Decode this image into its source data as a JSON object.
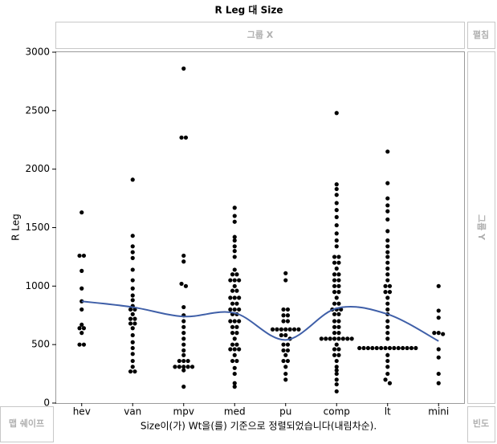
{
  "chart_data": {
    "type": "dotplot",
    "title": "R Leg 대 Size",
    "y_label": "R Leg",
    "x_label": "Size이(가) Wt을(를) 기준으로 정렬되었습니다(내림차순).",
    "categories": [
      "hev",
      "van",
      "mpv",
      "med",
      "pu",
      "comp",
      "lt",
      "mini"
    ],
    "values": [
      [
        1630,
        1260,
        1260,
        1130,
        980,
        870,
        800,
        670,
        640,
        640,
        600,
        500,
        500
      ],
      [
        1910,
        1430,
        1340,
        1290,
        1240,
        1140,
        1050,
        980,
        920,
        880,
        830,
        800,
        800,
        760,
        720,
        720,
        680,
        680,
        640,
        580,
        520,
        470,
        420,
        360,
        310,
        270,
        270
      ],
      [
        2860,
        2270,
        2270,
        1260,
        1210,
        1020,
        1000,
        820,
        750,
        700,
        650,
        600,
        550,
        500,
        450,
        410,
        360,
        360,
        360,
        310,
        310,
        310,
        310,
        310,
        280,
        140
      ],
      [
        1670,
        1600,
        1550,
        1420,
        1390,
        1340,
        1300,
        1250,
        1140,
        1100,
        1100,
        1050,
        1050,
        1050,
        1000,
        960,
        960,
        900,
        900,
        900,
        850,
        850,
        800,
        800,
        800,
        760,
        760,
        700,
        700,
        700,
        650,
        650,
        600,
        600,
        550,
        500,
        500,
        460,
        460,
        460,
        410,
        360,
        360,
        300,
        250,
        170,
        140
      ],
      [
        1110,
        1050,
        800,
        800,
        750,
        750,
        700,
        700,
        630,
        630,
        630,
        630,
        630,
        630,
        630,
        580,
        580,
        550,
        500,
        500,
        450,
        450,
        410,
        360,
        360,
        310,
        250,
        200
      ],
      [
        2480,
        1870,
        1830,
        1780,
        1710,
        1650,
        1590,
        1520,
        1450,
        1390,
        1340,
        1250,
        1250,
        1200,
        1200,
        1150,
        1100,
        1100,
        1050,
        1050,
        1000,
        1000,
        950,
        950,
        900,
        850,
        850,
        800,
        800,
        800,
        760,
        760,
        700,
        700,
        650,
        650,
        600,
        600,
        550,
        550,
        550,
        550,
        550,
        550,
        550,
        550,
        500,
        460,
        460,
        410,
        410,
        360,
        310,
        280,
        250,
        200,
        160,
        100
      ],
      [
        2150,
        1880,
        1750,
        1690,
        1640,
        1570,
        1470,
        1390,
        1340,
        1290,
        1250,
        1200,
        1150,
        1100,
        1050,
        1000,
        1000,
        950,
        950,
        900,
        850,
        800,
        760,
        700,
        650,
        600,
        550,
        470,
        470,
        470,
        470,
        470,
        470,
        470,
        470,
        470,
        470,
        470,
        470,
        470,
        470,
        410,
        360,
        310,
        250,
        200,
        170
      ],
      [
        1000,
        790,
        730,
        600,
        600,
        590,
        460,
        390,
        250,
        170
      ]
    ],
    "smooth_values": [
      870,
      820,
      740,
      770,
      540,
      810,
      760,
      530
    ],
    "point_color": "#000000",
    "smooth_color": "#3f5fa8",
    "ylim": [
      0,
      3000
    ],
    "yticks": [
      0,
      500,
      1000,
      1500,
      2000,
      2500,
      3000
    ]
  },
  "ui": {
    "group_x": "그룹 X",
    "wrap": "펼침",
    "group_y": "그룹 Y",
    "map_shape": "맵 쉐이프",
    "frequency": "빈도"
  }
}
